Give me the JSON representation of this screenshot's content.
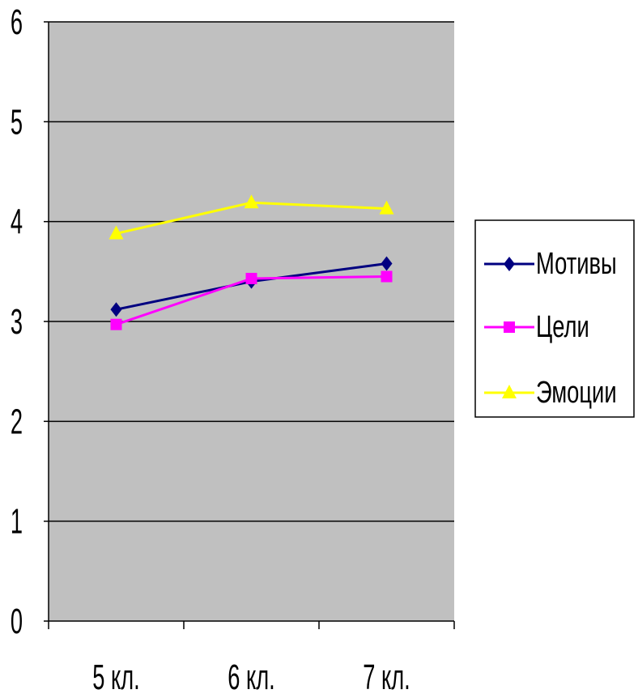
{
  "chart_data": {
    "type": "line",
    "categories": [
      "5 кл.",
      "6 кл.",
      "7 кл."
    ],
    "ylim": [
      0,
      6
    ],
    "yticks": [
      "0",
      "1",
      "2",
      "3",
      "4",
      "5",
      "6"
    ],
    "grid": true,
    "plot_background": "#c0c0c0",
    "legend_position": "right",
    "series": [
      {
        "name": "Мотивы",
        "values": [
          3.12,
          3.4,
          3.58
        ],
        "color": "#000080",
        "marker": "diamond"
      },
      {
        "name": "Цели",
        "values": [
          2.97,
          3.43,
          3.45
        ],
        "color": "#ff00ff",
        "marker": "square"
      },
      {
        "name": "Эмоции",
        "values": [
          3.88,
          4.19,
          4.13
        ],
        "color": "#ffff00",
        "marker": "triangle"
      }
    ]
  }
}
